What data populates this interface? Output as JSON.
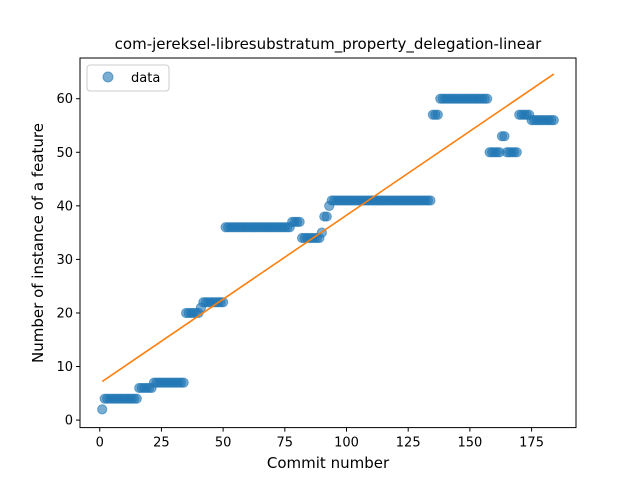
{
  "chart_data": {
    "type": "scatter",
    "title": "com-jereksel-libresubstratum_property_delegation-linear",
    "xlabel": "Commit number",
    "ylabel": "Number of instance of a feature",
    "xlim": [
      -8,
      193
    ],
    "ylim": [
      -1.4,
      67.6
    ],
    "xticks": [
      0,
      25,
      50,
      75,
      100,
      125,
      150,
      175
    ],
    "yticks": [
      0,
      10,
      20,
      30,
      40,
      50,
      60
    ],
    "grid": false,
    "legend": {
      "position": "top-left",
      "entries": [
        "data"
      ]
    },
    "colors": {
      "data": "#1f77b4",
      "fit": "#ff7f0e"
    },
    "series": [
      {
        "name": "data",
        "kind": "scatter",
        "segments": [
          {
            "x_start": 1,
            "x_end": 1,
            "y": 2
          },
          {
            "x_start": 2,
            "x_end": 15,
            "y": 4
          },
          {
            "x_start": 16,
            "x_end": 21,
            "y": 6
          },
          {
            "x_start": 22,
            "x_end": 23,
            "y": 7
          },
          {
            "x_start": 24,
            "x_end": 34,
            "y": 7
          },
          {
            "x_start": 35,
            "x_end": 40,
            "y": 20
          },
          {
            "x_start": 41,
            "x_end": 41,
            "y": 21
          },
          {
            "x_start": 42,
            "x_end": 50,
            "y": 22
          },
          {
            "x_start": 51,
            "x_end": 77,
            "y": 36
          },
          {
            "x_start": 78,
            "x_end": 81,
            "y": 37
          },
          {
            "x_start": 82,
            "x_end": 89,
            "y": 34
          },
          {
            "x_start": 90,
            "x_end": 90,
            "y": 35
          },
          {
            "x_start": 91,
            "x_end": 92,
            "y": 38
          },
          {
            "x_start": 93,
            "x_end": 93,
            "y": 40
          },
          {
            "x_start": 94,
            "x_end": 134,
            "y": 41
          },
          {
            "x_start": 135,
            "x_end": 137,
            "y": 57
          },
          {
            "x_start": 138,
            "x_end": 157,
            "y": 60
          },
          {
            "x_start": 158,
            "x_end": 162,
            "y": 50
          },
          {
            "x_start": 163,
            "x_end": 164,
            "y": 53
          },
          {
            "x_start": 165,
            "x_end": 169,
            "y": 50
          },
          {
            "x_start": 170,
            "x_end": 174,
            "y": 57
          },
          {
            "x_start": 175,
            "x_end": 184,
            "y": 56
          }
        ]
      },
      {
        "kind": "line",
        "x": [
          1,
          184
        ],
        "y": [
          7.2,
          64.6
        ]
      }
    ]
  }
}
